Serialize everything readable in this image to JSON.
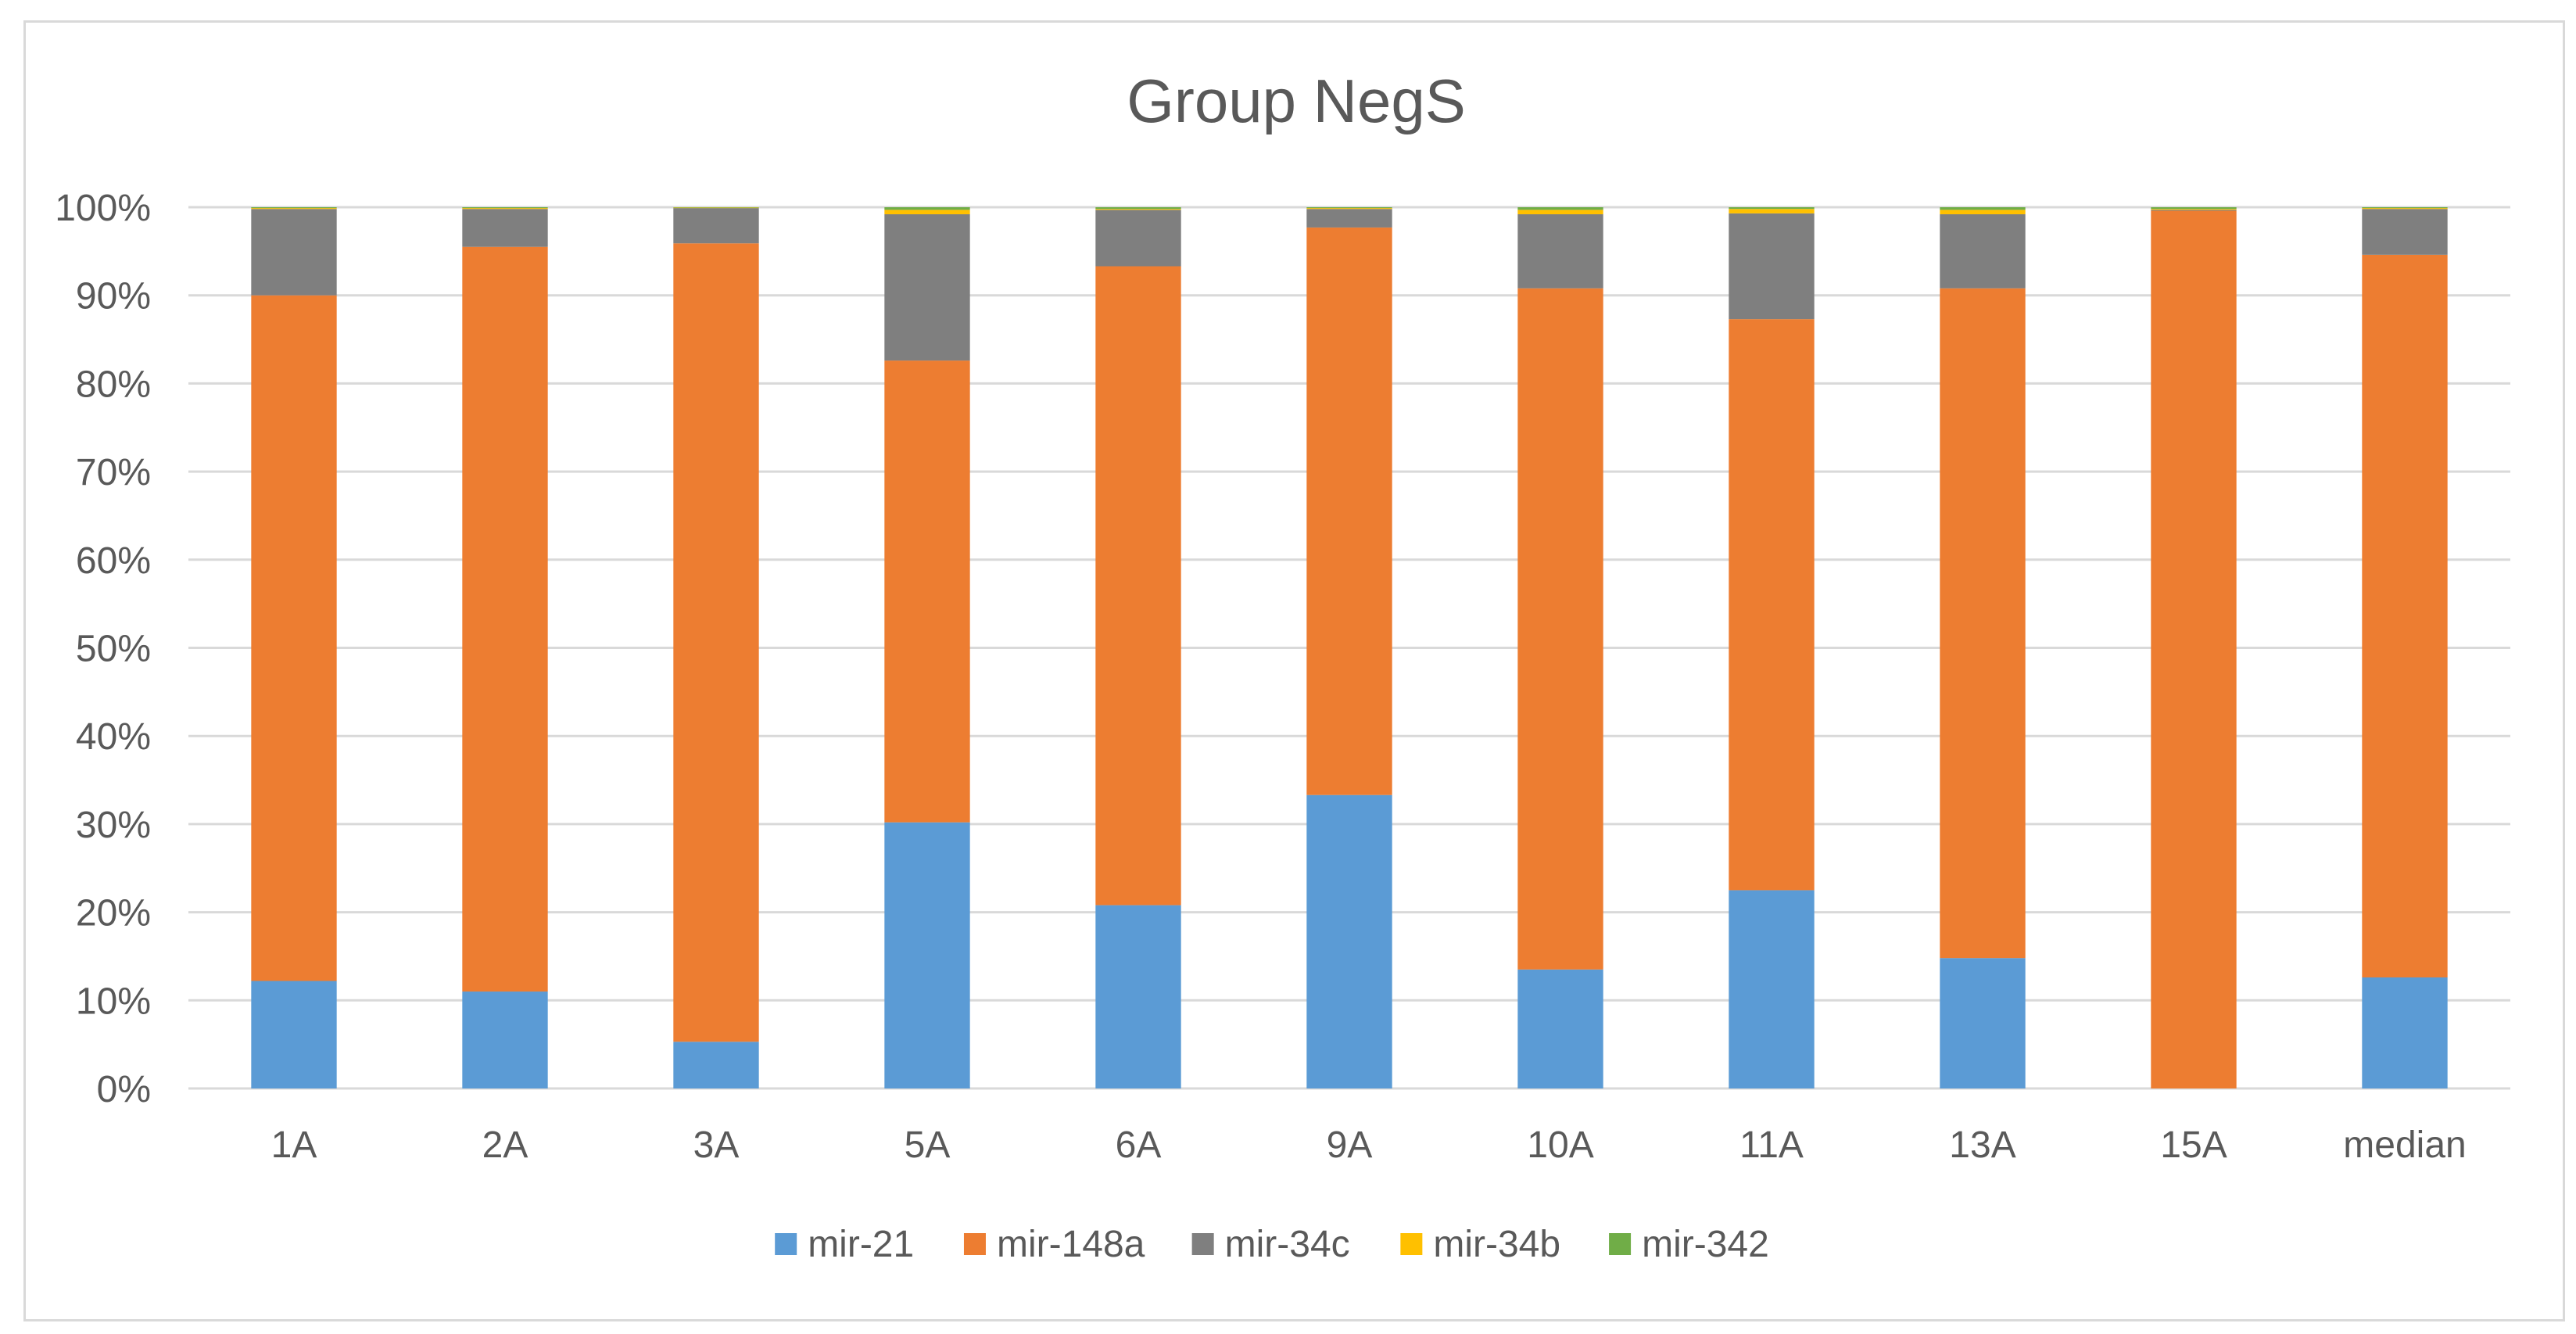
{
  "chart_data": {
    "type": "bar",
    "stacked": true,
    "percent": true,
    "title": "Group NegS",
    "xlabel": "",
    "ylabel": "",
    "ylim": [
      0,
      100
    ],
    "yticks": [
      "0%",
      "10%",
      "20%",
      "30%",
      "40%",
      "50%",
      "60%",
      "70%",
      "80%",
      "90%",
      "100%"
    ],
    "grid": true,
    "legend_position": "bottom",
    "categories": [
      "1A",
      "2A",
      "3A",
      "5A",
      "6A",
      "9A",
      "10A",
      "11A",
      "13A",
      "15A",
      "median"
    ],
    "series": [
      {
        "name": "mir-21",
        "color": "#5b9bd5",
        "values": [
          12.2,
          11.0,
          5.3,
          30.2,
          20.8,
          33.3,
          13.5,
          22.5,
          14.8,
          0.0,
          12.6
        ]
      },
      {
        "name": "mir-148a",
        "color": "#ed7d31",
        "values": [
          77.8,
          84.5,
          90.6,
          52.4,
          72.5,
          64.4,
          77.3,
          64.8,
          76.0,
          99.6,
          82.0
        ]
      },
      {
        "name": "mir-34c",
        "color": "#7f7f7f",
        "values": [
          9.8,
          4.3,
          4.0,
          16.6,
          6.4,
          2.1,
          8.4,
          12.0,
          8.4,
          0.1,
          5.2
        ]
      },
      {
        "name": "mir-34b",
        "color": "#ffc000",
        "values": [
          0.1,
          0.1,
          0.05,
          0.5,
          0.1,
          0.1,
          0.5,
          0.5,
          0.5,
          0.1,
          0.1
        ]
      },
      {
        "name": "mir-342",
        "color": "#70ad47",
        "values": [
          0.1,
          0.1,
          0.05,
          0.3,
          0.2,
          0.1,
          0.3,
          0.2,
          0.3,
          0.2,
          0.1
        ]
      }
    ]
  }
}
